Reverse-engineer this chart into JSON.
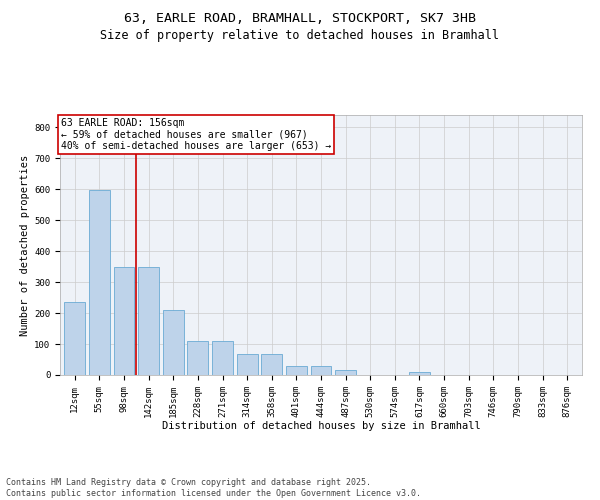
{
  "title_line1": "63, EARLE ROAD, BRAMHALL, STOCKPORT, SK7 3HB",
  "title_line2": "Size of property relative to detached houses in Bramhall",
  "xlabel": "Distribution of detached houses by size in Bramhall",
  "ylabel": "Number of detached properties",
  "categories": [
    "12sqm",
    "55sqm",
    "98sqm",
    "142sqm",
    "185sqm",
    "228sqm",
    "271sqm",
    "314sqm",
    "358sqm",
    "401sqm",
    "444sqm",
    "487sqm",
    "530sqm",
    "574sqm",
    "617sqm",
    "660sqm",
    "703sqm",
    "746sqm",
    "790sqm",
    "833sqm",
    "876sqm"
  ],
  "values": [
    237,
    597,
    350,
    350,
    210,
    110,
    110,
    68,
    68,
    28,
    28,
    15,
    0,
    0,
    10,
    0,
    0,
    0,
    0,
    0,
    0
  ],
  "bar_color": "#bed3ea",
  "bar_edge_color": "#6aaad4",
  "vline_color": "#cc0000",
  "annotation_text": "63 EARLE ROAD: 156sqm\n← 59% of detached houses are smaller (967)\n40% of semi-detached houses are larger (653) →",
  "annotation_box_color": "#ffffff",
  "annotation_box_edge_color": "#cc0000",
  "ylim": [
    0,
    840
  ],
  "yticks": [
    0,
    100,
    200,
    300,
    400,
    500,
    600,
    700,
    800
  ],
  "grid_color": "#cccccc",
  "background_color": "#eef2f8",
  "footer_text": "Contains HM Land Registry data © Crown copyright and database right 2025.\nContains public sector information licensed under the Open Government Licence v3.0.",
  "title_fontsize": 9.5,
  "subtitle_fontsize": 8.5,
  "axis_label_fontsize": 7.5,
  "tick_fontsize": 6.5,
  "annotation_fontsize": 7,
  "footer_fontsize": 6
}
